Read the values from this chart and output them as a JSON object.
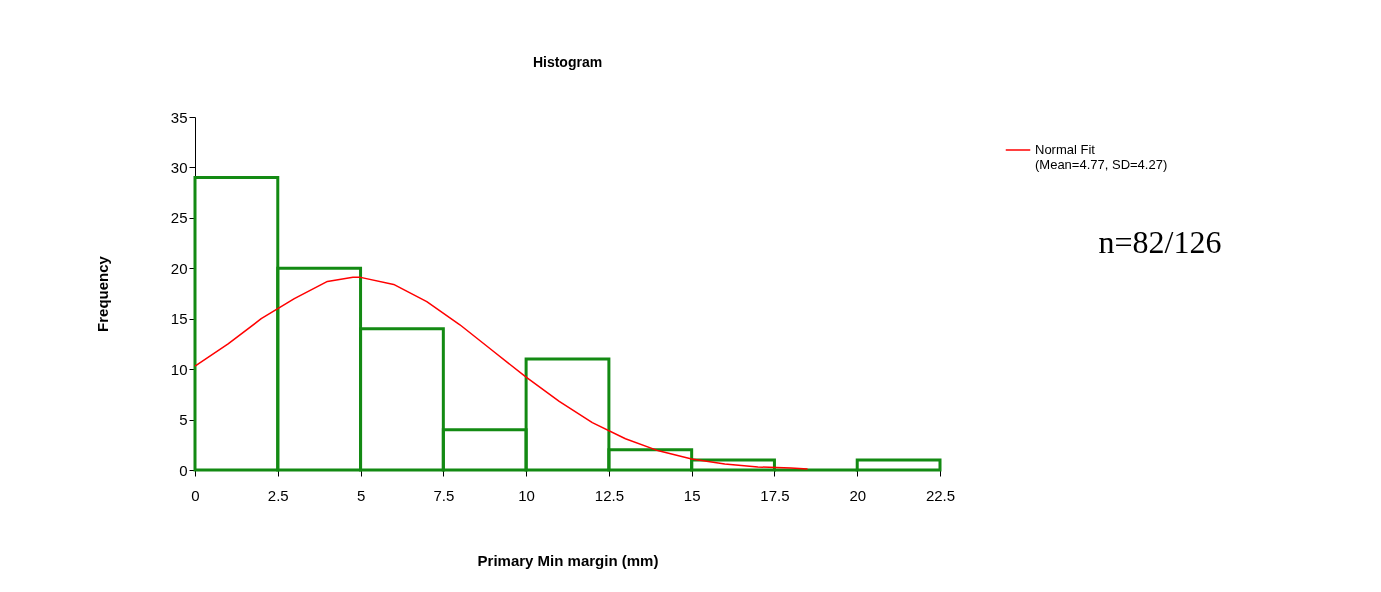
{
  "chart_data": {
    "type": "histogram",
    "title": "Histogram",
    "xlabel": "Primary Min margin (mm)",
    "ylabel": "Frequency",
    "bins": [
      0,
      2.5,
      5,
      7.5,
      10,
      12.5,
      15,
      17.5,
      20,
      22.5
    ],
    "values": [
      29,
      20,
      14,
      4,
      11,
      2,
      1,
      0,
      1
    ],
    "color": "#138a13",
    "series": [
      {
        "name": "Normal Fit\n(Mean=4.77, SD=4.27)",
        "type": "line",
        "color": "#ff0000",
        "x": [
          0,
          1,
          2,
          3,
          4,
          4.77,
          5,
          6,
          7,
          8,
          9,
          10,
          11,
          12,
          13,
          14,
          15,
          16,
          17,
          18,
          18.5
        ],
        "values": [
          10.3,
          12.5,
          15,
          17,
          18.7,
          19.1,
          19.1,
          18.4,
          16.7,
          14.4,
          11.8,
          9.2,
          6.8,
          4.7,
          3.1,
          1.9,
          1.1,
          0.6,
          0.3,
          0.2,
          0.1
        ]
      }
    ],
    "xlim": [
      0,
      22.5
    ],
    "xticks": [
      0,
      2.5,
      5,
      7.5,
      10,
      12.5,
      15,
      17.5,
      20,
      22.5
    ],
    "ylim": [
      0,
      35
    ],
    "yticks": [
      0,
      5,
      10,
      15,
      20,
      25,
      30,
      35
    ],
    "grid": false,
    "legend": "top right",
    "annotations": [
      "n=82/126"
    ]
  }
}
